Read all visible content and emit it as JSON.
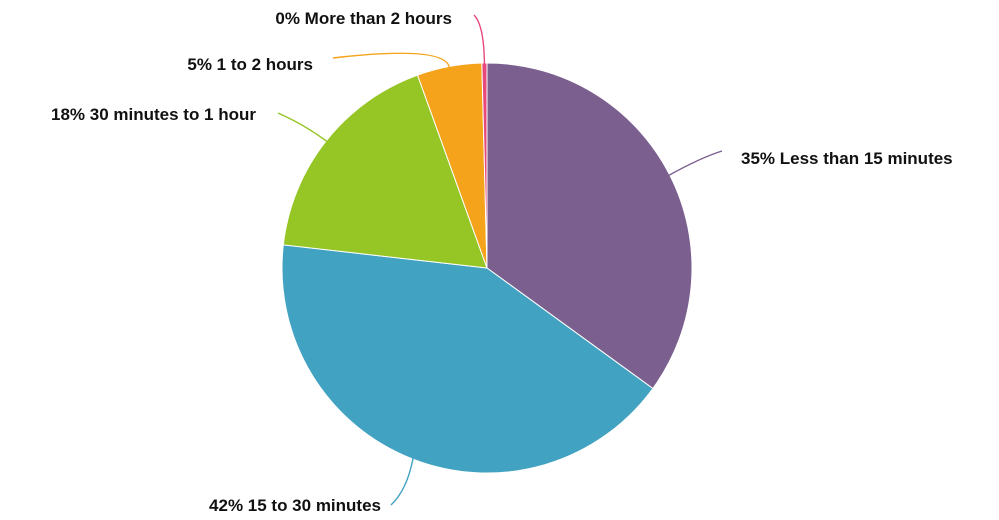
{
  "chart_data": {
    "type": "pie",
    "start_angle_deg": 0,
    "direction": "clockwise",
    "slices": [
      {
        "label": "35% Less than 15 minutes",
        "value": 35.0,
        "color": "#7b5f8f"
      },
      {
        "label": "42% 15 to 30 minutes",
        "value": 41.8,
        "color": "#41a2c2"
      },
      {
        "label": "18% 30 minutes to 1 hour",
        "value": 17.7,
        "color": "#95c626"
      },
      {
        "label": "5% 1 to 2 hours",
        "value": 5.1,
        "color": "#f4a31a"
      },
      {
        "label": "0% More than 2 hours",
        "value": 0.4,
        "color": "#e7497a"
      }
    ]
  }
}
